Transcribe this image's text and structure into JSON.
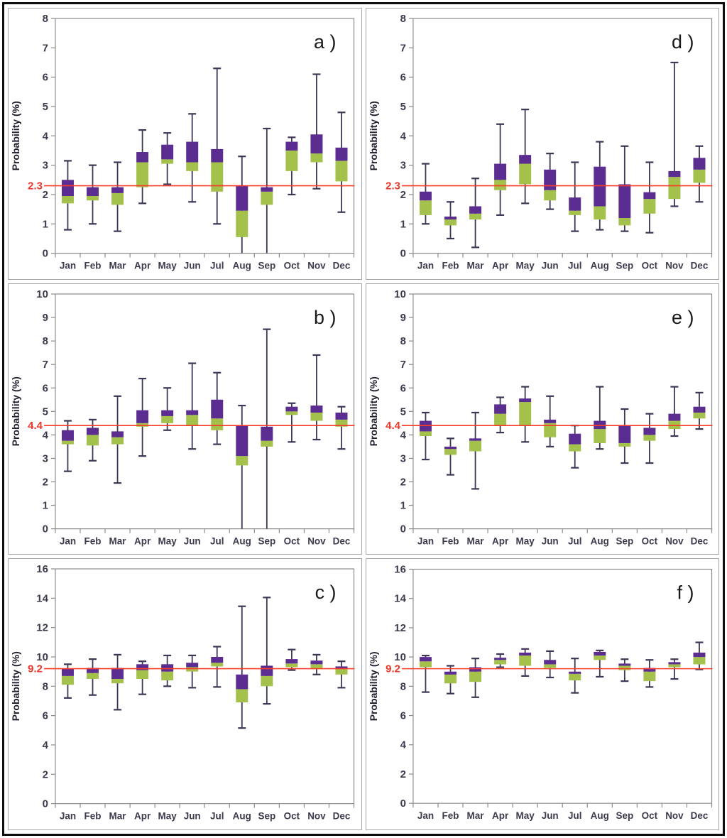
{
  "figure": {
    "description": "Six monthly box-plot panels (a-f) arranged 2 columns x 3 rows",
    "y_axis_title": "Probability (%)",
    "months": [
      "Jan",
      "Feb",
      "Mar",
      "Apr",
      "May",
      "Jun",
      "Jul",
      "Aug",
      "Sep",
      "Oct",
      "Nov",
      "Dec"
    ],
    "colors": {
      "box_upper_purple": "#5b2d90",
      "box_lower_green": "#a3c14b",
      "whisker": "#3f3655",
      "axis_line": "#8c8c8c",
      "tick_label": "#3d3a4d",
      "month_label": "#3d3a4d",
      "ref_line_red": "#fb3c2b",
      "ref_label_red": "#e8392b",
      "panel_label": "#1a1a1a",
      "panel_border": "#a6a6a6",
      "frame_border": "#0e0e0e"
    }
  },
  "chart_data": [
    {
      "type": "boxplot",
      "panel_label": "a )",
      "ylabel": "Probability (%)",
      "ylim": [
        0,
        8
      ],
      "ytick_step": 1,
      "grid": false,
      "ref_line": {
        "value": 2.3,
        "label": "2.3"
      },
      "categories": [
        "Jan",
        "Feb",
        "Mar",
        "Apr",
        "May",
        "Jun",
        "Jul",
        "Aug",
        "Sep",
        "Oct",
        "Nov",
        "Dec"
      ],
      "series_format": [
        "whisker_low",
        "box_low",
        "box_mid",
        "box_high",
        "whisker_high"
      ],
      "values": [
        [
          0.8,
          1.7,
          1.95,
          2.5,
          3.15
        ],
        [
          1.0,
          1.8,
          1.95,
          2.25,
          3.0
        ],
        [
          0.75,
          1.65,
          2.05,
          2.25,
          3.1
        ],
        [
          1.7,
          2.25,
          3.1,
          3.45,
          4.2
        ],
        [
          2.35,
          3.05,
          3.2,
          3.7,
          4.1
        ],
        [
          1.75,
          2.8,
          3.1,
          3.8,
          4.75
        ],
        [
          1.0,
          2.1,
          3.1,
          3.55,
          6.3
        ],
        [
          0.0,
          0.55,
          1.45,
          2.3,
          3.3
        ],
        [
          0.0,
          1.65,
          2.1,
          2.25,
          4.25
        ],
        [
          2.0,
          2.8,
          3.5,
          3.8,
          3.95
        ],
        [
          2.2,
          3.1,
          3.4,
          4.05,
          6.1
        ],
        [
          1.4,
          2.45,
          3.15,
          3.6,
          4.8
        ]
      ]
    },
    {
      "type": "boxplot",
      "panel_label": "d )",
      "ylabel": "Probability (%)",
      "ylim": [
        0,
        8
      ],
      "ytick_step": 1,
      "grid": false,
      "ref_line": {
        "value": 2.3,
        "label": "2.3"
      },
      "categories": [
        "Jan",
        "Feb",
        "Mar",
        "Apr",
        "May",
        "Jun",
        "Jul",
        "Aug",
        "Sep",
        "Oct",
        "Nov",
        "Dec"
      ],
      "series_format": [
        "whisker_low",
        "box_low",
        "box_mid",
        "box_high",
        "whisker_high"
      ],
      "values": [
        [
          1.0,
          1.3,
          1.8,
          2.1,
          3.05
        ],
        [
          0.5,
          0.95,
          1.15,
          1.25,
          1.75
        ],
        [
          0.2,
          1.15,
          1.35,
          1.6,
          2.55
        ],
        [
          1.3,
          2.15,
          2.5,
          3.05,
          4.4
        ],
        [
          1.7,
          2.35,
          3.05,
          3.35,
          4.9
        ],
        [
          1.5,
          1.8,
          2.15,
          2.85,
          3.4
        ],
        [
          0.75,
          1.3,
          1.45,
          1.9,
          3.1
        ],
        [
          0.8,
          1.15,
          1.6,
          2.95,
          3.8
        ],
        [
          0.75,
          0.95,
          1.2,
          2.35,
          3.65
        ],
        [
          0.7,
          1.35,
          1.85,
          2.08,
          3.1
        ],
        [
          1.6,
          1.85,
          2.6,
          2.8,
          6.5
        ],
        [
          1.75,
          2.4,
          2.85,
          3.25,
          3.65
        ]
      ]
    },
    {
      "type": "boxplot",
      "panel_label": "b )",
      "ylabel": "Probability (%)",
      "ylim": [
        0,
        10
      ],
      "ytick_step": 1,
      "grid": false,
      "ref_line": {
        "value": 4.4,
        "label": "4.4"
      },
      "categories": [
        "Jan",
        "Feb",
        "Mar",
        "Apr",
        "May",
        "Jun",
        "Jul",
        "Aug",
        "Sep",
        "Oct",
        "Nov",
        "Dec"
      ],
      "series_format": [
        "whisker_low",
        "box_low",
        "box_mid",
        "box_high",
        "whisker_high"
      ],
      "values": [
        [
          2.45,
          3.6,
          3.75,
          4.2,
          4.6
        ],
        [
          2.9,
          3.55,
          4.0,
          4.3,
          4.65
        ],
        [
          1.95,
          3.6,
          3.9,
          4.15,
          5.65
        ],
        [
          3.1,
          4.35,
          4.5,
          5.05,
          6.4
        ],
        [
          4.2,
          4.5,
          4.8,
          5.05,
          6.0
        ],
        [
          3.4,
          4.4,
          4.85,
          5.05,
          7.05
        ],
        [
          3.6,
          4.2,
          4.7,
          5.5,
          6.65
        ],
        [
          0.0,
          2.7,
          3.1,
          4.4,
          5.25
        ],
        [
          0.0,
          3.5,
          3.75,
          4.35,
          8.5
        ],
        [
          3.7,
          4.85,
          5.0,
          5.2,
          5.35
        ],
        [
          3.8,
          4.6,
          4.95,
          5.25,
          7.4
        ],
        [
          3.4,
          4.35,
          4.65,
          4.95,
          5.2
        ]
      ]
    },
    {
      "type": "boxplot",
      "panel_label": "e )",
      "ylabel": "Probability (%)",
      "ylim": [
        0,
        10
      ],
      "ytick_step": 1,
      "grid": false,
      "ref_line": {
        "value": 4.4,
        "label": "4.4"
      },
      "categories": [
        "Jan",
        "Feb",
        "Mar",
        "Apr",
        "May",
        "Jun",
        "Jul",
        "Aug",
        "Sep",
        "Oct",
        "Nov",
        "Dec"
      ],
      "series_format": [
        "whisker_low",
        "box_low",
        "box_mid",
        "box_high",
        "whisker_high"
      ],
      "values": [
        [
          2.95,
          3.95,
          4.15,
          4.6,
          4.95
        ],
        [
          2.3,
          3.15,
          3.4,
          3.5,
          3.85
        ],
        [
          1.7,
          3.3,
          3.75,
          3.85,
          4.95
        ],
        [
          4.1,
          4.4,
          4.9,
          5.3,
          5.6
        ],
        [
          3.7,
          4.4,
          5.4,
          5.55,
          6.05
        ],
        [
          3.5,
          3.9,
          4.5,
          4.65,
          5.65
        ],
        [
          2.6,
          3.3,
          3.6,
          4.05,
          4.4
        ],
        [
          3.4,
          3.65,
          4.25,
          4.6,
          6.05
        ],
        [
          2.8,
          3.5,
          3.65,
          4.4,
          5.1
        ],
        [
          2.8,
          3.75,
          4.0,
          4.3,
          4.9
        ],
        [
          3.95,
          4.25,
          4.6,
          4.9,
          6.05
        ],
        [
          4.25,
          4.7,
          4.95,
          5.2,
          5.8
        ]
      ]
    },
    {
      "type": "boxplot",
      "panel_label": "c )",
      "ylabel": "Probability (%)",
      "ylim": [
        0,
        16
      ],
      "ytick_step": 2,
      "grid": false,
      "ref_line": {
        "value": 9.2,
        "label": "9.2"
      },
      "categories": [
        "Jan",
        "Feb",
        "Mar",
        "Apr",
        "May",
        "Jun",
        "Jul",
        "Aug",
        "Sep",
        "Oct",
        "Nov",
        "Dec"
      ],
      "series_format": [
        "whisker_low",
        "box_low",
        "box_mid",
        "box_high",
        "whisker_high"
      ],
      "values": [
        [
          7.2,
          8.1,
          8.7,
          9.2,
          9.5
        ],
        [
          7.4,
          8.5,
          8.9,
          9.25,
          9.85
        ],
        [
          6.4,
          8.2,
          8.5,
          9.25,
          10.15
        ],
        [
          7.45,
          8.5,
          9.1,
          9.5,
          9.7
        ],
        [
          8.0,
          8.4,
          9.0,
          9.5,
          10.1
        ],
        [
          7.9,
          9.0,
          9.3,
          9.6,
          10.1
        ],
        [
          7.95,
          9.35,
          9.6,
          10.0,
          10.7
        ],
        [
          5.15,
          6.9,
          7.8,
          8.8,
          13.45
        ],
        [
          6.8,
          8.0,
          8.7,
          9.4,
          14.05
        ],
        [
          9.1,
          9.3,
          9.55,
          9.85,
          10.5
        ],
        [
          8.8,
          9.2,
          9.5,
          9.75,
          10.15
        ],
        [
          7.9,
          8.8,
          9.2,
          9.35,
          9.7
        ]
      ]
    },
    {
      "type": "boxplot",
      "panel_label": "f )",
      "ylabel": "Probability (%)",
      "ylim": [
        0,
        16
      ],
      "ytick_step": 2,
      "grid": false,
      "ref_line": {
        "value": 9.2,
        "label": "9.2"
      },
      "categories": [
        "Jan",
        "Feb",
        "Mar",
        "Apr",
        "May",
        "Jun",
        "Jul",
        "Aug",
        "Sep",
        "Oct",
        "Nov",
        "Dec"
      ],
      "series_format": [
        "whisker_low",
        "box_low",
        "box_mid",
        "box_high",
        "whisker_high"
      ],
      "values": [
        [
          7.6,
          9.3,
          9.7,
          10.0,
          10.1
        ],
        [
          7.5,
          8.2,
          8.8,
          9.0,
          9.4
        ],
        [
          7.25,
          8.3,
          9.0,
          9.3,
          9.9
        ],
        [
          9.3,
          9.5,
          9.8,
          9.95,
          10.2
        ],
        [
          8.7,
          9.4,
          10.1,
          10.3,
          10.55
        ],
        [
          8.6,
          9.25,
          9.5,
          9.8,
          10.4
        ],
        [
          7.55,
          8.4,
          8.85,
          9.0,
          9.9
        ],
        [
          8.65,
          9.8,
          10.1,
          10.35,
          10.45
        ],
        [
          8.35,
          9.1,
          9.4,
          9.55,
          9.85
        ],
        [
          7.95,
          8.35,
          9.0,
          9.25,
          9.8
        ],
        [
          8.5,
          9.3,
          9.5,
          9.65,
          9.85
        ],
        [
          9.15,
          9.5,
          10.0,
          10.3,
          11.0
        ]
      ]
    }
  ]
}
